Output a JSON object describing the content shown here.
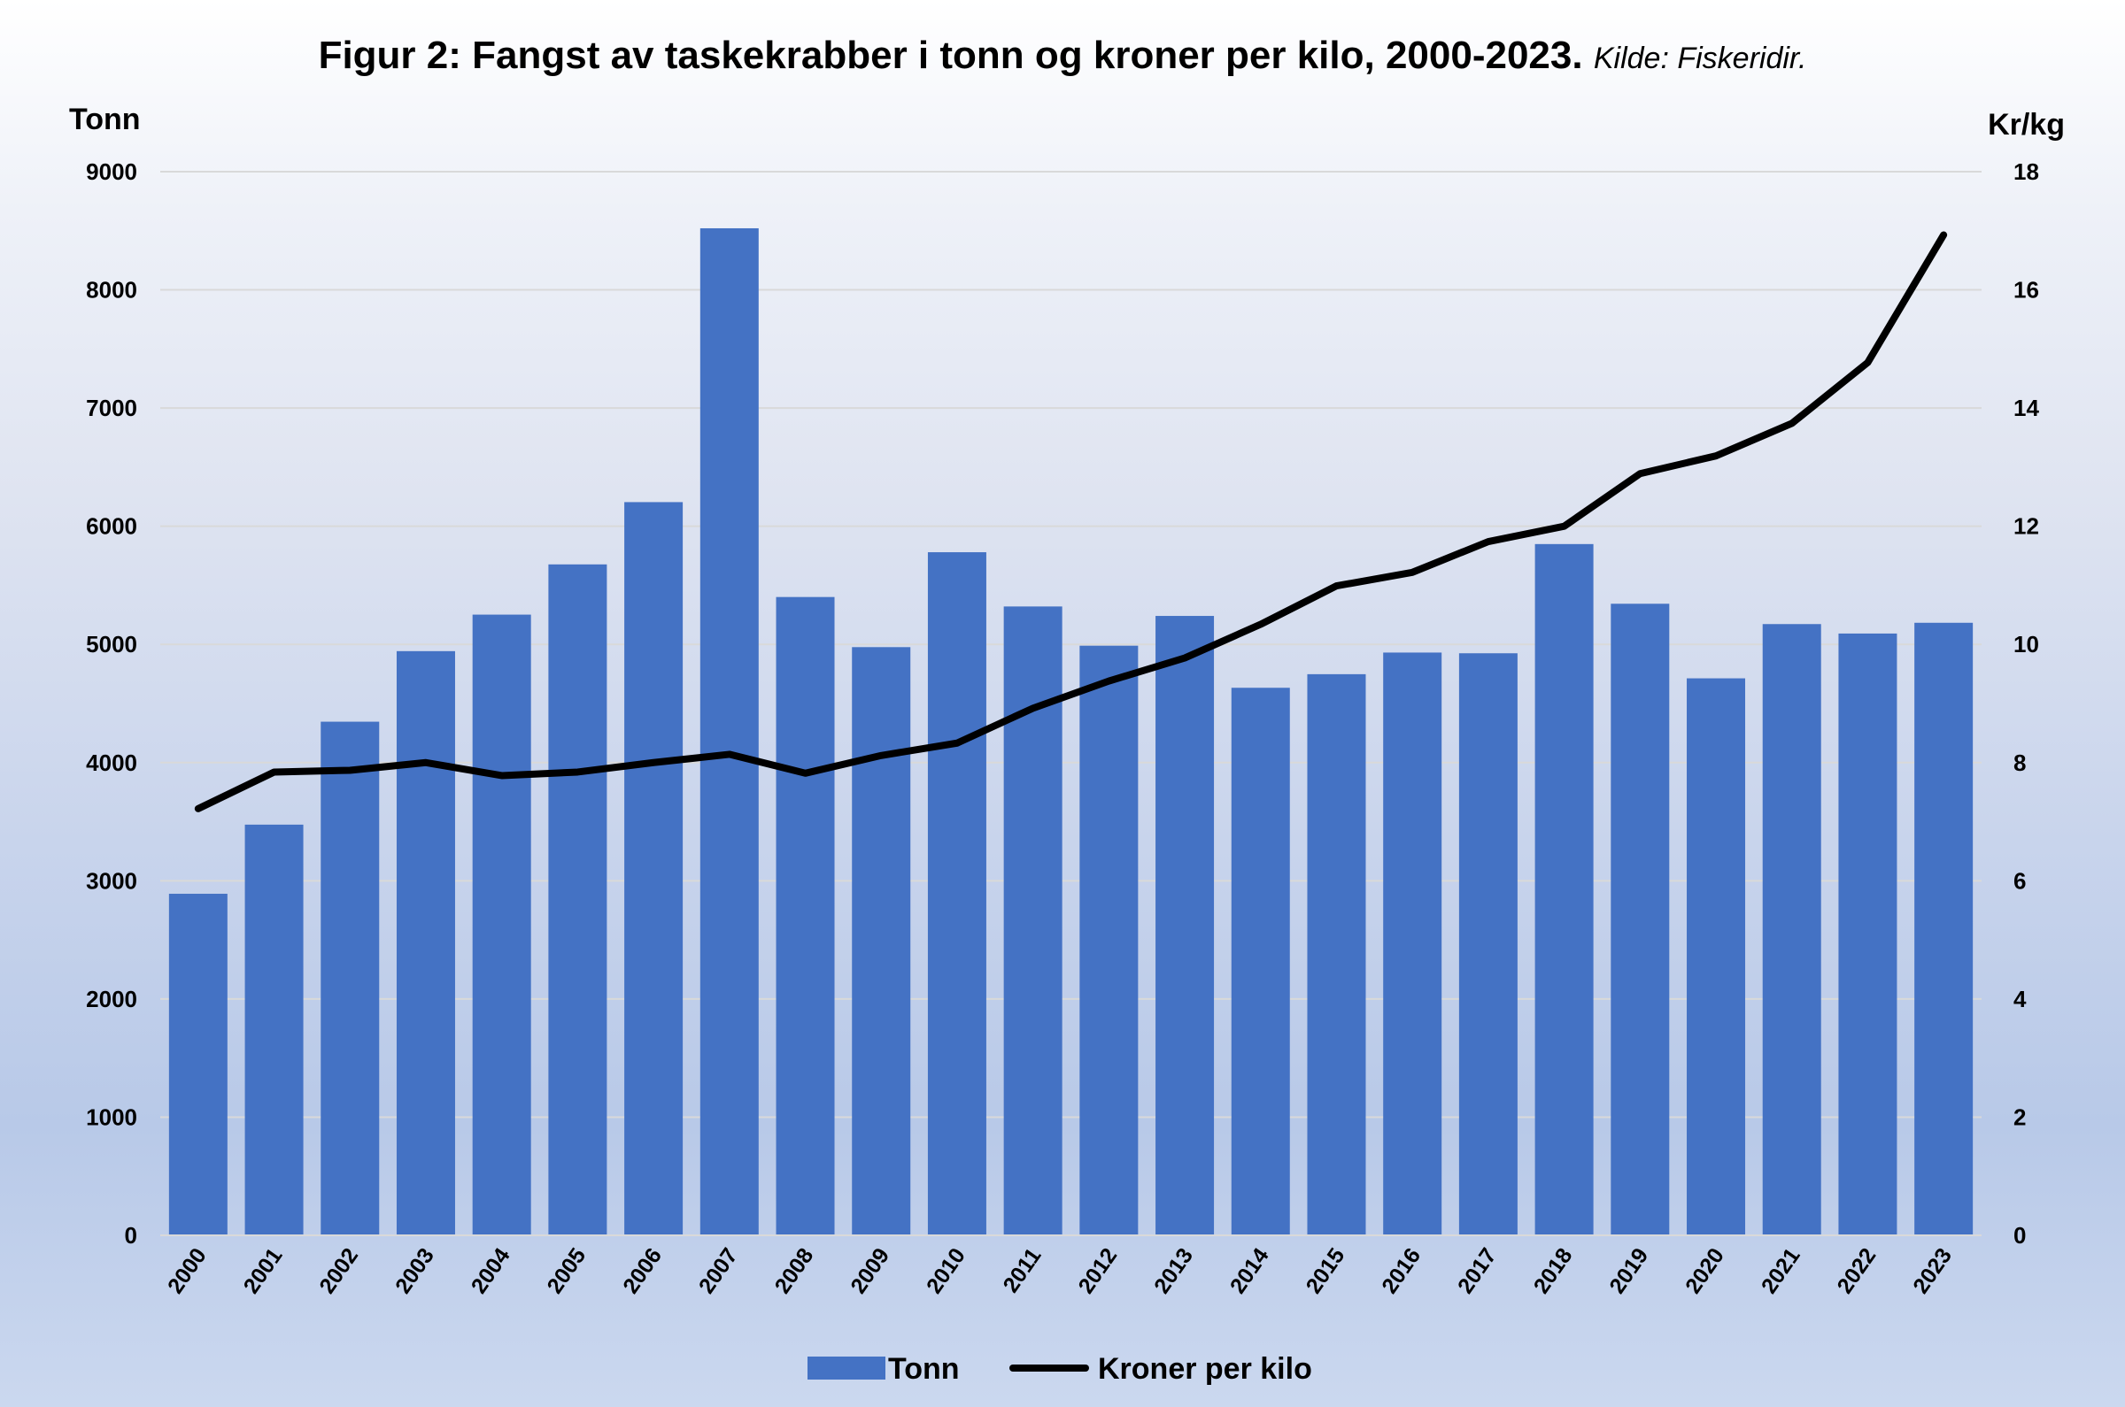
{
  "chart_data": {
    "type": "bar+line",
    "title": "Figur 2: Fangst av taskekrabber i tonn og kroner per kilo, 2000-2023.",
    "subtitle": "Kilde: Fiskeridir.",
    "ylabel_left": "Tonn",
    "ylabel_right": "Kr/kg",
    "ylim_left": [
      0,
      9000
    ],
    "ylim_right": [
      0,
      18
    ],
    "yticks_left": [
      "0",
      "1000",
      "2000",
      "3000",
      "4000",
      "5000",
      "6000",
      "7000",
      "8000",
      "9000"
    ],
    "yticks_right": [
      "0",
      "2",
      "4",
      "6",
      "8",
      "10",
      "12",
      "14",
      "16",
      "18"
    ],
    "grid": true,
    "legend_position": "bottom",
    "categories": [
      "2000",
      "2001",
      "2002",
      "2003",
      "2004",
      "2005",
      "2006",
      "2007",
      "2008",
      "2009",
      "2010",
      "2011",
      "2012",
      "2013",
      "2014",
      "2015",
      "2016",
      "2017",
      "2018",
      "2019",
      "2020",
      "2021",
      "2022",
      "2023"
    ],
    "series": [
      {
        "name": "Tonn",
        "type": "bar",
        "axis": "left",
        "color": "#4472c4",
        "values": [
          2890,
          3475,
          4346,
          4943,
          5252,
          5677,
          6204,
          8521,
          5401,
          4977,
          5780,
          5321,
          4989,
          5241,
          4633,
          4748,
          4931,
          4925,
          5849,
          5344,
          4713,
          5172,
          5092,
          5183
        ]
      },
      {
        "name": "Kroner per kilo",
        "type": "line",
        "axis": "right",
        "color": "#000000",
        "values": [
          7.22,
          7.84,
          7.87,
          8.0,
          7.78,
          7.84,
          8.0,
          8.14,
          7.82,
          8.12,
          8.33,
          8.92,
          9.38,
          9.77,
          10.34,
          10.99,
          11.22,
          11.74,
          12.0,
          12.89,
          13.19,
          13.74,
          14.77,
          16.93
        ]
      }
    ]
  }
}
